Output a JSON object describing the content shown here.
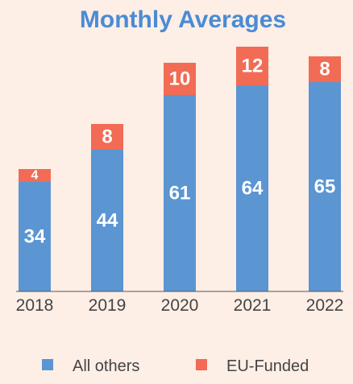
{
  "chart_data": {
    "type": "bar",
    "stacked": true,
    "title": "Monthly Averages",
    "categories": [
      "2018",
      "2019",
      "2020",
      "2021",
      "2022"
    ],
    "series": [
      {
        "name": "All others",
        "values": [
          34,
          44,
          61,
          64,
          65
        ],
        "color": "#5b95d2"
      },
      {
        "name": "EU-Funded",
        "values": [
          4,
          8,
          10,
          12,
          8
        ],
        "color": "#f26b54"
      }
    ],
    "ylim": [
      0,
      80
    ],
    "grid": false,
    "legend": "bottom",
    "title_color": "#4a8bd4",
    "background": "#fdeee6",
    "axis_color": "#555555"
  }
}
